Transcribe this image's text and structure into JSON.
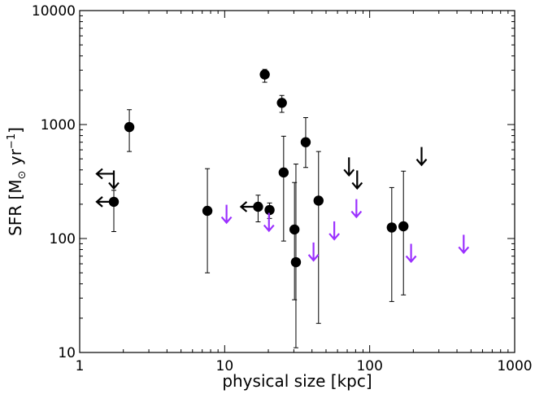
{
  "chart_data": {
    "type": "scatter",
    "title": "",
    "xlabel": "physical size [kpc]",
    "ylabel_main": "SFR [M",
    "ylabel_sub": "⊙",
    "ylabel_unit": " yr",
    "ylabel_sup": "−1",
    "ylabel_close": "]",
    "xscale": "log",
    "yscale": "log",
    "xlim": [
      1,
      1000
    ],
    "ylim": [
      10,
      10000
    ],
    "grid": false,
    "legend": "none",
    "xticks": [
      {
        "value": 1,
        "label": "1"
      },
      {
        "value": 10,
        "label": "10"
      },
      {
        "value": 100,
        "label": "100"
      },
      {
        "value": 1000,
        "label": "1000"
      }
    ],
    "yticks": [
      {
        "value": 10,
        "label": "10"
      },
      {
        "value": 100,
        "label": "100"
      },
      {
        "value": 1000,
        "label": "1000"
      },
      {
        "value": 10000,
        "label": "10000"
      }
    ],
    "colors": {
      "detection": "#000000",
      "upper_limit_black": "#000000",
      "upper_limit_purple": "#9b30ff"
    },
    "series": [
      {
        "kind": "detections",
        "points": [
          {
            "x": 1.72,
            "y": 210,
            "ylo": 115,
            "yhi": 265
          },
          {
            "x": 2.2,
            "y": 950,
            "ylo": 580,
            "yhi": 1350
          },
          {
            "x": 7.6,
            "y": 175,
            "ylo": 50,
            "yhi": 410
          },
          {
            "x": 17.0,
            "y": 190,
            "ylo": 140,
            "yhi": 240
          },
          {
            "x": 18.9,
            "y": 2750,
            "ylo": 2350,
            "yhi": 3050
          },
          {
            "x": 20.4,
            "y": 178,
            "ylo": 150,
            "yhi": 205
          },
          {
            "x": 24.8,
            "y": 1550,
            "ylo": 1280,
            "yhi": 1800
          },
          {
            "x": 25.5,
            "y": 380,
            "ylo": 95,
            "yhi": 790
          },
          {
            "x": 30.3,
            "y": 120,
            "ylo": 29,
            "yhi": 310
          },
          {
            "x": 31.0,
            "y": 62,
            "ylo": 11,
            "yhi": 450
          },
          {
            "x": 36.2,
            "y": 700,
            "ylo": 420,
            "yhi": 1150
          },
          {
            "x": 44.4,
            "y": 215,
            "ylo": 18,
            "yhi": 580
          },
          {
            "x": 142,
            "y": 125,
            "ylo": 28,
            "yhi": 280
          },
          {
            "x": 171,
            "y": 128,
            "ylo": 32,
            "yhi": 390
          }
        ]
      },
      {
        "kind": "size_upper_limits",
        "color": "#000000",
        "points": [
          {
            "x": 1.72,
            "y": 370
          },
          {
            "x": 1.72,
            "y": 210
          },
          {
            "x": 17.0,
            "y": 190
          }
        ]
      },
      {
        "kind": "sfr_upper_limits",
        "color": "#000000",
        "points": [
          {
            "x": 1.72,
            "y": 330
          },
          {
            "x": 72,
            "y": 430
          },
          {
            "x": 82,
            "y": 330
          },
          {
            "x": 228,
            "y": 530
          }
        ]
      },
      {
        "kind": "sfr_upper_limits",
        "color": "#9b30ff",
        "points": [
          {
            "x": 10.3,
            "y": 165
          },
          {
            "x": 20.2,
            "y": 140
          },
          {
            "x": 41.0,
            "y": 77
          },
          {
            "x": 57.0,
            "y": 118
          },
          {
            "x": 81.0,
            "y": 185
          },
          {
            "x": 193,
            "y": 75
          },
          {
            "x": 445,
            "y": 90
          }
        ]
      }
    ]
  }
}
